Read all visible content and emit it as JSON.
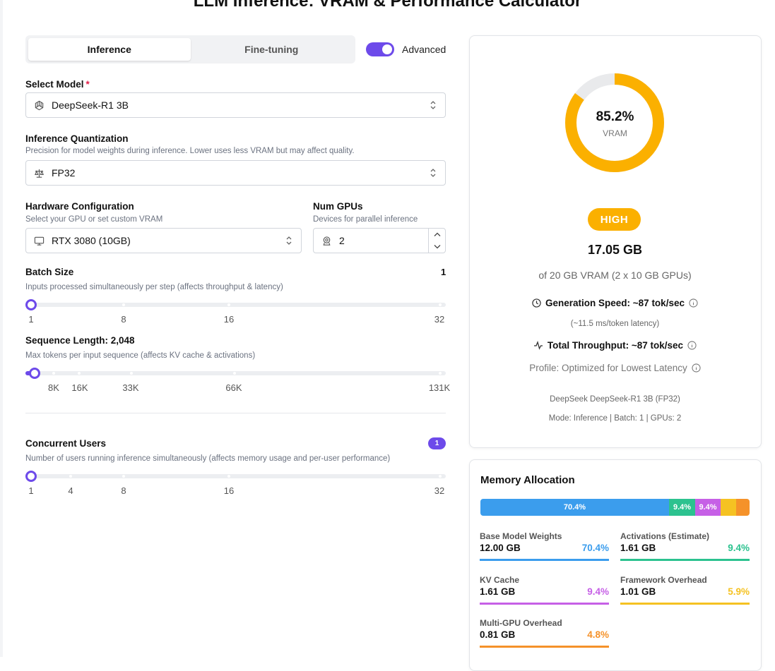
{
  "app": {
    "title": "LLM Inference: VRAM & Performance Calculator"
  },
  "mode_tabs": [
    {
      "label": "Inference",
      "active": true
    },
    {
      "label": "Fine-tuning",
      "active": false
    }
  ],
  "advanced_toggle": {
    "label": "Advanced",
    "on": true
  },
  "model": {
    "label": "Select Model",
    "required_mark": "*",
    "value": "DeepSeek-R1 3B",
    "icon": "openai-icon"
  },
  "quantization": {
    "label": "Inference Quantization",
    "hint": "Precision for model weights during inference. Lower uses less VRAM but may affect quality.",
    "value": "FP32",
    "icon": "scale-icon"
  },
  "hardware": {
    "label": "Hardware Configuration",
    "hint": "Select your GPU or set custom VRAM",
    "value": "RTX 3080 (10GB)",
    "icon": "monitor-icon"
  },
  "gpus": {
    "label": "Num GPUs",
    "hint": "Devices for parallel inference",
    "value": "2",
    "icon": "gpu-icon"
  },
  "batch": {
    "label": "Batch Size",
    "value": "1",
    "hint": "Inputs processed simultaneously per step (affects throughput & latency)",
    "ticks": [
      "1",
      "8",
      "16",
      "32"
    ]
  },
  "sequence": {
    "label": "Sequence Length: 2,048",
    "hint": "Max tokens per input sequence (affects KV cache & activations)",
    "ticks": [
      "8K",
      "16K",
      "33K",
      "66K",
      "131K"
    ]
  },
  "users": {
    "label": "Concurrent Users",
    "value": "1",
    "hint": "Number of users running inference simultaneously (affects memory usage and per-user performance)",
    "ticks": [
      "1",
      "4",
      "8",
      "16",
      "32"
    ]
  },
  "summary": {
    "vram_percent": "85.2%",
    "vram_fraction": 0.852,
    "vram_caption": "VRAM",
    "level": "HIGH",
    "used": "17.05 GB",
    "total": "of 20 GB VRAM (2 x 10 GB GPUs)",
    "speed": "Generation Speed: ~87 tok/sec",
    "latency": "(~11.5 ms/token latency)",
    "throughput": "Total Throughput: ~87 tok/sec",
    "profile": "Profile: Optimized for Lowest Latency",
    "model_line": "DeepSeek DeepSeek-R1 3B (FP32)",
    "mode_line": "Mode: Inference | Batch: 1 | GPUs: 2",
    "colors": {
      "gauge": "#fbb000",
      "gauge_track": "#e9eaec"
    }
  },
  "memory": {
    "title": "Memory Allocation",
    "bar_labels": [
      "70.4%",
      "9.4%",
      "9.4%"
    ],
    "items": [
      {
        "name": "Base Model Weights",
        "gb": "12.00 GB",
        "pct": "70.4%",
        "color": "#3b9ded"
      },
      {
        "name": "Activations (Estimate)",
        "gb": "1.61 GB",
        "pct": "9.4%",
        "color": "#2cc28f"
      },
      {
        "name": "KV Cache",
        "gb": "1.61 GB",
        "pct": "9.4%",
        "color": "#c660e6"
      },
      {
        "name": "Framework Overhead",
        "gb": "1.01 GB",
        "pct": "5.9%",
        "color": "#f5c222"
      },
      {
        "name": "Multi-GPU Overhead",
        "gb": "0.81 GB",
        "pct": "4.8%",
        "color": "#f5922a"
      }
    ]
  }
}
